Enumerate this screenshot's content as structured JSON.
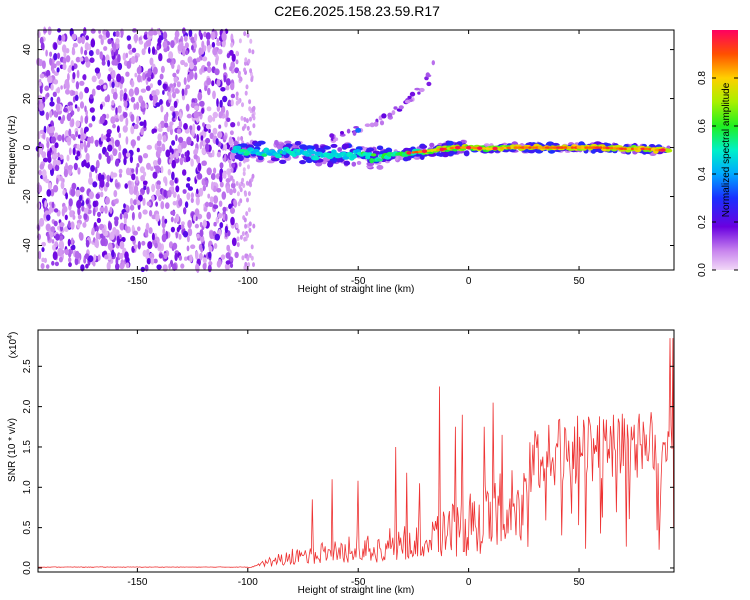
{
  "title": "C2E6.2025.158.23.59.R17",
  "chart_data": [
    {
      "type": "heatmap",
      "xlabel": "Height of straight line (km)",
      "ylabel": "Frequency (Hz)",
      "xlim": [
        -195,
        93
      ],
      "ylim": [
        -50,
        48
      ],
      "xticks": [
        -150,
        -100,
        -50,
        0,
        50
      ],
      "yticks": [
        -40,
        -20,
        0,
        20,
        40
      ],
      "noise_region_x": [
        -195,
        -105
      ],
      "ridge": {
        "x": [
          -105,
          -100,
          -90,
          -80,
          -75,
          -70,
          -65,
          -60,
          -55,
          -50,
          -45,
          -40,
          -35,
          -30,
          -25,
          -20,
          -15,
          -10,
          -5,
          0,
          10,
          20,
          30,
          40,
          50,
          60,
          70,
          80,
          85,
          92
        ],
        "y": [
          -1,
          -1.5,
          -2,
          -2,
          -2,
          -3,
          -3,
          -3,
          -3,
          -3,
          -4,
          -4,
          -3,
          -2.5,
          -2,
          -1.5,
          -1,
          -0.5,
          0,
          0,
          -0.5,
          0,
          0,
          0,
          0,
          0,
          -0.5,
          -0.5,
          -1,
          -1
        ]
      },
      "branch": {
        "x": [
          -62,
          -50,
          -40,
          -30,
          -25,
          -20,
          -15
        ],
        "y": [
          4,
          7,
          11,
          17,
          21,
          26,
          36
        ]
      },
      "colorbar": {
        "label": "Normalized spectral amplitude",
        "ticks": [
          0.0,
          0.2,
          0.4,
          0.6,
          0.8
        ],
        "range": [
          0,
          1
        ]
      }
    },
    {
      "type": "line",
      "xlabel": "Height of straight line (km)",
      "ylabel": "SNR (10 * v/v)",
      "multiplier_label": "(x10",
      "multiplier_exp": "4",
      "xlim": [
        -195,
        93
      ],
      "ylim": [
        -0.05,
        2.95
      ],
      "xticks": [
        -150,
        -100,
        -50,
        0,
        50
      ],
      "yticks": [
        0.0,
        0.5,
        1.0,
        1.5,
        2.0,
        2.5
      ],
      "ytick_labels": [
        "0.0",
        "0.5",
        "1.0",
        "1.5",
        "2.0",
        "2.5"
      ],
      "series_color": "#ee3333",
      "envelope": {
        "x": [
          -195,
          -100,
          -95,
          -90,
          -80,
          -70,
          -60,
          -50,
          -40,
          -30,
          -20,
          -10,
          -5,
          0,
          10,
          20,
          25,
          30,
          40,
          50,
          60,
          70,
          80,
          88,
          90,
          92
        ],
        "y": [
          0.01,
          0.01,
          0.08,
          0.15,
          0.25,
          0.33,
          0.4,
          0.48,
          0.58,
          0.66,
          0.75,
          0.85,
          0.95,
          1.05,
          1.25,
          1.45,
          1.6,
          1.75,
          1.85,
          1.9,
          1.92,
          1.93,
          1.94,
          1.95,
          2.0,
          2.0
        ]
      },
      "spikes": [
        {
          "x": -71,
          "y": 0.85
        },
        {
          "x": -62,
          "y": 1.1
        },
        {
          "x": -50,
          "y": 1.08
        },
        {
          "x": -33,
          "y": 1.5
        },
        {
          "x": -28,
          "y": 1.18
        },
        {
          "x": -22,
          "y": 1.05
        },
        {
          "x": -13,
          "y": 2.25
        },
        {
          "x": -6,
          "y": 1.75
        },
        {
          "x": -3,
          "y": 1.9
        },
        {
          "x": 7,
          "y": 1.75
        },
        {
          "x": 11,
          "y": 2.05
        },
        {
          "x": 15,
          "y": 1.65
        },
        {
          "x": 91,
          "y": 2.85
        }
      ]
    }
  ]
}
